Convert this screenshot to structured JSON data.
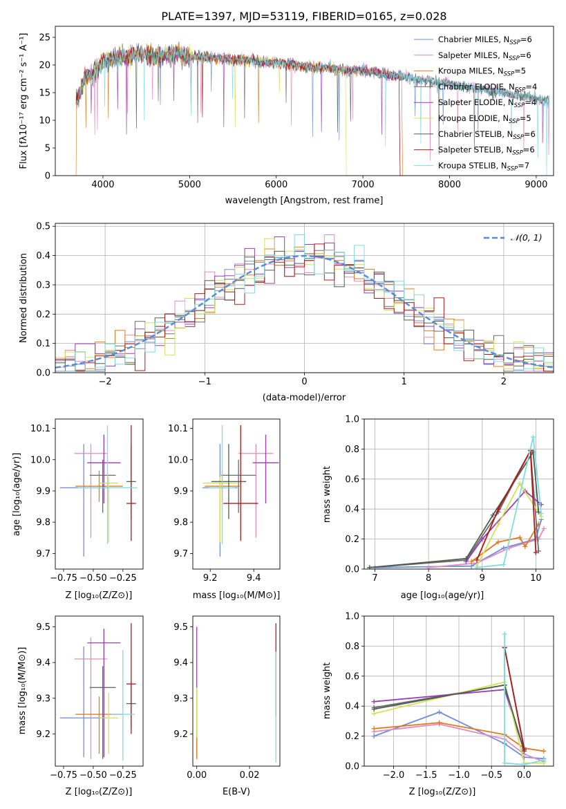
{
  "chart_data": [
    {
      "id": "spectrum",
      "type": "line",
      "title": "PLATE=1397, MJD=53119, FIBERID=0165, z=0.028",
      "xlabel": "wavelength [Angstrom, rest frame]",
      "ylabel": "Flux [fλ10⁻¹⁷ erg cm⁻² s⁻¹ A⁻¹]",
      "xlim": [
        3450,
        9200
      ],
      "ylim": [
        0,
        27
      ],
      "xticks": [
        4000,
        5000,
        6000,
        7000,
        8000,
        9000
      ],
      "yticks": [
        0,
        5,
        10,
        15,
        20,
        25
      ],
      "legend_position": "top-right",
      "spectrum_shape": {
        "x": [
          3700,
          3800,
          3900,
          4000,
          4100,
          4200,
          4300,
          4400,
          4500,
          4600,
          4800,
          5000,
          5200,
          5400,
          5600,
          5800,
          6000,
          6200,
          6400,
          6600,
          6800,
          7000,
          7200,
          7400,
          7600,
          7800,
          8000,
          8200,
          8400,
          8600,
          8800,
          9000,
          9100
        ],
        "y": [
          13.5,
          18.0,
          18.5,
          20.5,
          21.0,
          21.5,
          21.5,
          22.0,
          22.0,
          21.5,
          22.0,
          21.5,
          21.5,
          21.0,
          21.0,
          20.5,
          20.5,
          20.0,
          19.5,
          19.5,
          19.0,
          19.0,
          18.5,
          18.0,
          17.5,
          17.0,
          16.5,
          16.0,
          15.5,
          15.0,
          14.5,
          14.0,
          13.5
        ]
      },
      "series": [
        {
          "name": "Chabrier MILES, N",
          "sub": "SSP",
          "suffix": "=6",
          "color": "#6c8edb"
        },
        {
          "name": "Salpeter MILES, N",
          "sub": "SSP",
          "suffix": "=6",
          "color": "#e38ac0"
        },
        {
          "name": "Kroupa MILES, N",
          "sub": "SSP",
          "suffix": "=5",
          "color": "#e07b1f"
        },
        {
          "name": "Chabrier ELODIE, N",
          "sub": "SSP",
          "suffix": "=4",
          "color": "#6b6b6b"
        },
        {
          "name": "Salpeter ELODIE, N",
          "sub": "SSP",
          "suffix": "=4",
          "color": "#9a3bb5"
        },
        {
          "name": "Kroupa ELODIE, N",
          "sub": "SSP",
          "suffix": "=5",
          "color": "#d4e157"
        },
        {
          "name": "Chabrier STELIB, N",
          "sub": "SSP",
          "suffix": "=6",
          "color": "#4e5e4e"
        },
        {
          "name": "Salpeter STELIB, N",
          "sub": "SSP",
          "suffix": "=6",
          "color": "#b01818"
        },
        {
          "name": "Kroupa STELIB, N",
          "sub": "SSP",
          "suffix": "=7",
          "color": "#7fdbe0"
        }
      ]
    },
    {
      "id": "residuals",
      "type": "bar",
      "xlabel": "(data-model)/error",
      "ylabel": "Normed distribution",
      "xlim": [
        -2.5,
        2.5
      ],
      "ylim": [
        0,
        0.51
      ],
      "xticks": [
        -2,
        -1,
        0,
        1,
        2
      ],
      "yticks": [
        0.0,
        0.1,
        0.2,
        0.3,
        0.4,
        0.5
      ],
      "grid": true,
      "legend": "𝒩(0, 1)",
      "legend_position": "top-right",
      "bin_width": 0.1,
      "reference_curve": "normal(0, 1)"
    },
    {
      "id": "age_vs_Z",
      "type": "scatter",
      "xlabel": "Z [log₁₀(Z/Z⊙)]",
      "ylabel": "age  [log₁₀(age/yr)]",
      "xlim": [
        -0.82,
        -0.08
      ],
      "ylim": [
        9.65,
        10.13
      ],
      "xticks": [
        -0.75,
        -0.5,
        -0.25
      ],
      "yticks": [
        9.7,
        9.8,
        9.9,
        10.0,
        10.1
      ],
      "points": [
        {
          "x": -0.58,
          "y": 9.91,
          "xerr": 0.2,
          "yerr": [
            0.22,
            0.14
          ],
          "color": "#6c8edb"
        },
        {
          "x": -0.52,
          "y": 10.02,
          "xerr": 0.14,
          "yerr": [
            0.27,
            0.03
          ],
          "color": "#e38ac0"
        },
        {
          "x": -0.45,
          "y": 9.915,
          "xerr": 0.2,
          "yerr": [
            0.05,
            0.05
          ],
          "color": "#e07b1f"
        },
        {
          "x": -0.42,
          "y": 9.95,
          "xerr": 0.11,
          "yerr": [
            0.12,
            0.05
          ],
          "color": "#6b6b6b"
        },
        {
          "x": -0.41,
          "y": 9.99,
          "xerr": 0.14,
          "yerr": [
            0.13,
            0.09
          ],
          "color": "#9a3bb5"
        },
        {
          "x": -0.37,
          "y": 9.925,
          "xerr": 0.08,
          "yerr": [
            0.19,
            0.02
          ],
          "color": "#d4e157"
        },
        {
          "x": -0.18,
          "y": 9.93,
          "xerr": 0.04,
          "yerr": [
            0.12,
            0.12
          ],
          "color": "#4e5e4e"
        },
        {
          "x": -0.18,
          "y": 9.86,
          "xerr": 0.04,
          "yerr": [
            0.12,
            0.25
          ],
          "color": "#b01818"
        },
        {
          "x": -0.38,
          "y": 9.91,
          "xerr": 0.25,
          "yerr": [
            0.18,
            0.2
          ],
          "color": "#7fdbe0"
        }
      ]
    },
    {
      "id": "age_vs_mass",
      "type": "scatter",
      "xlabel": "mass [log₁₀(M/M⊙)]",
      "ylabel": "",
      "xlim": [
        9.12,
        9.52
      ],
      "ylim": [
        9.65,
        10.13
      ],
      "xticks": [
        9.2,
        9.4
      ],
      "yticks": [
        9.7,
        9.8,
        9.9,
        10.0,
        10.1
      ],
      "points": [
        {
          "x": 9.245,
          "y": 9.91,
          "xerr": 0.08,
          "yerr": [
            0.22,
            0.14
          ],
          "color": "#6c8edb"
        },
        {
          "x": 9.41,
          "y": 10.02,
          "xerr": 0.08,
          "yerr": [
            0.27,
            0.03
          ],
          "color": "#e38ac0"
        },
        {
          "x": 9.255,
          "y": 9.915,
          "xerr": 0.08,
          "yerr": [
            0.05,
            0.05
          ],
          "color": "#e07b1f"
        },
        {
          "x": 9.33,
          "y": 9.95,
          "xerr": 0.08,
          "yerr": [
            0.12,
            0.05
          ],
          "color": "#6b6b6b"
        },
        {
          "x": 9.455,
          "y": 9.99,
          "xerr": 0.06,
          "yerr": [
            0.13,
            0.09
          ],
          "color": "#9a3bb5"
        },
        {
          "x": 9.245,
          "y": 9.925,
          "xerr": 0.08,
          "yerr": [
            0.19,
            0.02
          ],
          "color": "#d4e157"
        },
        {
          "x": 9.285,
          "y": 9.93,
          "xerr": 0.08,
          "yerr": [
            0.12,
            0.12
          ],
          "color": "#4e5e4e"
        },
        {
          "x": 9.34,
          "y": 9.86,
          "xerr": 0.08,
          "yerr": [
            0.12,
            0.25
          ],
          "color": "#b01818"
        },
        {
          "x": 9.255,
          "y": 9.91,
          "xerr": 0.06,
          "yerr": [
            0.18,
            0.2
          ],
          "color": "#7fdbe0"
        }
      ]
    },
    {
      "id": "massweight_vs_age",
      "type": "line",
      "xlabel": "age  [log₁₀(age/yr)]",
      "ylabel": "mass weight",
      "xlim": [
        6.8,
        10.33
      ],
      "ylim": [
        0,
        1.0
      ],
      "xticks": [
        7,
        8,
        9,
        10
      ],
      "yticks": [
        0.0,
        0.2,
        0.4,
        0.6,
        0.8,
        1.0
      ],
      "grid": true,
      "series": [
        {
          "color": "#6c8edb",
          "x": [
            7.0,
            8.8,
            9.4,
            10.0,
            10.1
          ],
          "y": [
            0.01,
            0.02,
            0.14,
            0.2,
            0.33
          ]
        },
        {
          "color": "#e38ac0",
          "x": [
            8.0,
            8.9,
            9.5,
            10.05,
            10.15
          ],
          "y": [
            0.01,
            0.04,
            0.14,
            0.2,
            0.27
          ]
        },
        {
          "color": "#e07b1f",
          "x": [
            8.8,
            9.3,
            9.7,
            9.8,
            10.05
          ],
          "y": [
            0.05,
            0.18,
            0.21,
            0.15,
            0.3
          ]
        },
        {
          "color": "#6b6b6b",
          "x": [
            6.9,
            8.7,
            9.3,
            9.9,
            10.05
          ],
          "y": [
            0.01,
            0.06,
            0.38,
            0.79,
            0.12
          ]
        },
        {
          "color": "#9a3bb5",
          "x": [
            8.7,
            9.0,
            9.8,
            10.1
          ],
          "y": [
            0.05,
            0.2,
            0.52,
            0.43
          ]
        },
        {
          "color": "#d4e157",
          "x": [
            8.9,
            9.3,
            9.7,
            10.1
          ],
          "y": [
            0.02,
            0.3,
            0.57,
            0.35
          ]
        },
        {
          "color": "#4e5e4e",
          "x": [
            6.9,
            8.7,
            9.2,
            9.95,
            10.05
          ],
          "y": [
            0.01,
            0.07,
            0.36,
            0.78,
            0.38
          ]
        },
        {
          "color": "#b01818",
          "x": [
            8.9,
            9.3,
            9.9,
            10.0
          ],
          "y": [
            0.06,
            0.4,
            0.79,
            0.11
          ]
        },
        {
          "color": "#7fdbe0",
          "x": [
            8.9,
            9.4,
            9.95,
            10.1
          ],
          "y": [
            0.01,
            0.03,
            0.88,
            0.37
          ]
        }
      ]
    },
    {
      "id": "mass_vs_Z",
      "type": "scatter",
      "xlabel": "Z [log₁₀(Z/Z⊙)]",
      "ylabel": "mass [log₁₀(M/M⊙)]",
      "xlim": [
        -0.82,
        -0.08
      ],
      "ylim": [
        9.11,
        9.53
      ],
      "xticks": [
        -0.75,
        -0.5,
        -0.25
      ],
      "yticks": [
        9.2,
        9.3,
        9.4,
        9.5
      ],
      "points": [
        {
          "x": -0.58,
          "y": 9.245,
          "xerr": 0.2,
          "yerr": [
            0.11,
            0.2
          ],
          "color": "#6c8edb"
        },
        {
          "x": -0.52,
          "y": 9.41,
          "xerr": 0.14,
          "yerr": [
            0.28,
            0.06
          ],
          "color": "#e38ac0"
        },
        {
          "x": -0.45,
          "y": 9.255,
          "xerr": 0.2,
          "yerr": [
            0.11,
            0.05
          ],
          "color": "#e07b1f"
        },
        {
          "x": -0.42,
          "y": 9.33,
          "xerr": 0.11,
          "yerr": [
            0.2,
            0.06
          ],
          "color": "#6b6b6b"
        },
        {
          "x": -0.41,
          "y": 9.455,
          "xerr": 0.14,
          "yerr": [
            0.32,
            0.04
          ],
          "color": "#9a3bb5"
        },
        {
          "x": -0.37,
          "y": 9.245,
          "xerr": 0.08,
          "yerr": [
            0.1,
            0.07
          ],
          "color": "#d4e157"
        },
        {
          "x": -0.18,
          "y": 9.285,
          "xerr": 0.04,
          "yerr": [
            0.07,
            0.06
          ],
          "color": "#4e5e4e"
        },
        {
          "x": -0.18,
          "y": 9.34,
          "xerr": 0.04,
          "yerr": [
            0.14,
            0.17
          ],
          "color": "#b01818"
        },
        {
          "x": -0.25,
          "y": 9.255,
          "xerr": 0.1,
          "yerr": [
            0.13,
            0.18
          ],
          "color": "#7fdbe0"
        }
      ]
    },
    {
      "id": "mass_vs_ebv",
      "type": "scatter",
      "xlabel": "E(B-V)",
      "ylabel": "",
      "xlim": [
        -0.0015,
        0.0315
      ],
      "ylim": [
        9.11,
        9.53
      ],
      "xticks": [
        0.0,
        0.02
      ],
      "yticks": [
        9.2,
        9.3,
        9.4,
        9.5
      ],
      "points": [
        {
          "x": 0.0,
          "y": 9.33,
          "xerr": 0,
          "yerr": [
            0.2,
            0.17
          ],
          "color": "#9a3bb5"
        },
        {
          "x": 0.0,
          "y": 9.25,
          "xerr": 0,
          "yerr": [
            0.12,
            0.08
          ],
          "color": "#d4e157"
        },
        {
          "x": 0.0,
          "y": 9.16,
          "xerr": 0,
          "yerr": [
            0.03,
            0.03
          ],
          "color": "#e07b1f"
        },
        {
          "x": 0.03,
          "y": 9.35,
          "xerr": 0,
          "yerr": [
            0.1,
            0.16
          ],
          "color": "#b01818"
        },
        {
          "x": 0.03,
          "y": 9.3,
          "xerr": 0,
          "yerr": [
            0.18,
            0.13
          ],
          "color": "#7fdbe0"
        }
      ]
    },
    {
      "id": "massweight_vs_Z",
      "type": "line",
      "xlabel": "Z [log₁₀(Z/Z⊙)]",
      "ylabel": "mass weight",
      "xlim": [
        -2.45,
        0.45
      ],
      "ylim": [
        0,
        1.0
      ],
      "xticks": [
        -2.0,
        -1.5,
        -1.0,
        -0.5,
        0.0
      ],
      "yticks": [
        0.0,
        0.2,
        0.4,
        0.6,
        0.8,
        1.0
      ],
      "grid": true,
      "series": [
        {
          "color": "#6c8edb",
          "x": [
            -2.3,
            -1.3,
            -0.3,
            0.0,
            0.3
          ],
          "y": [
            0.2,
            0.36,
            0.15,
            0.06,
            0.05
          ]
        },
        {
          "color": "#e38ac0",
          "x": [
            -2.3,
            -1.3,
            -0.3,
            0.0,
            0.3
          ],
          "y": [
            0.23,
            0.28,
            0.18,
            0.08,
            0.03
          ]
        },
        {
          "color": "#e07b1f",
          "x": [
            -2.3,
            -1.3,
            -0.3,
            0.0,
            0.3
          ],
          "y": [
            0.25,
            0.29,
            0.21,
            0.12,
            0.1
          ]
        },
        {
          "color": "#6b6b6b",
          "x": [
            -2.3,
            -0.3,
            -0.3,
            0.0
          ],
          "y": [
            0.39,
            0.54,
            0.79,
            0.12
          ]
        },
        {
          "color": "#9a3bb5",
          "x": [
            -2.3,
            -0.3,
            0.0
          ],
          "y": [
            0.43,
            0.51,
            0.1
          ]
        },
        {
          "color": "#d4e157",
          "x": [
            -2.3,
            -0.3,
            0.0,
            0.3
          ],
          "y": [
            0.35,
            0.56,
            0.02,
            0.02
          ]
        },
        {
          "color": "#4e5e4e",
          "x": [
            -2.3,
            -0.3,
            0.0
          ],
          "y": [
            0.38,
            0.54,
            0.1
          ]
        },
        {
          "color": "#b01818",
          "x": [
            -0.3,
            -0.3,
            0.0
          ],
          "y": [
            0.79,
            0.79,
            0.11
          ]
        },
        {
          "color": "#7fdbe0",
          "x": [
            -0.3,
            -0.3,
            0.0,
            0.3
          ],
          "y": [
            0.88,
            0.02,
            0.01,
            0.04
          ]
        }
      ]
    }
  ]
}
